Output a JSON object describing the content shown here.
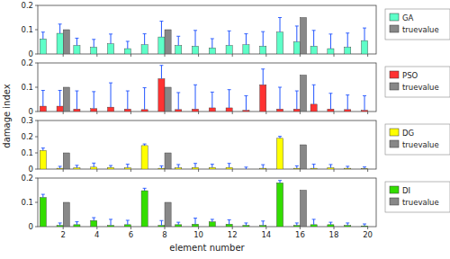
{
  "chart_data": [
    {
      "type": "bar",
      "ylabel": "damage index",
      "x": [
        1,
        2,
        3,
        4,
        5,
        6,
        7,
        8,
        9,
        10,
        11,
        12,
        13,
        14,
        15,
        16,
        17,
        18,
        19,
        20
      ],
      "xlim": [
        0.5,
        20.5
      ],
      "xticks": [
        2,
        4,
        6,
        8,
        10,
        12,
        14,
        16,
        18,
        20
      ],
      "ylim": [
        0,
        0.2
      ],
      "yticks": [
        0,
        0.1,
        0.2
      ],
      "tick_labels": "y",
      "legend": "right",
      "series": [
        {
          "name": "GA",
          "color": "#5EFFC8",
          "values": [
            0.062,
            0.085,
            0.035,
            0.028,
            0.042,
            0.022,
            0.038,
            0.07,
            0.035,
            0.032,
            0.025,
            0.035,
            0.038,
            0.032,
            0.09,
            0.05,
            0.032,
            0.022,
            0.028,
            0.055
          ],
          "errors": [
            0.028,
            0.038,
            0.03,
            0.032,
            0.04,
            0.03,
            0.045,
            0.065,
            0.038,
            0.065,
            0.038,
            0.06,
            0.045,
            0.06,
            0.06,
            0.065,
            0.065,
            0.06,
            0.058,
            0.052
          ]
        },
        {
          "name": "truevalue",
          "color": "#888888",
          "values": [
            0.0,
            0.1,
            0.0,
            0.0,
            0.0,
            0.0,
            0.0,
            0.1,
            0.0,
            0.0,
            0.0,
            0.0,
            0.0,
            0.0,
            0.0,
            0.15,
            0.0,
            0.0,
            0.0,
            0.0
          ]
        }
      ]
    },
    {
      "type": "bar",
      "x": [
        1,
        2,
        3,
        4,
        5,
        6,
        7,
        8,
        9,
        10,
        11,
        12,
        13,
        14,
        15,
        16,
        17,
        18,
        19,
        20
      ],
      "xlim": [
        0.5,
        20.5
      ],
      "xticks": [
        2,
        4,
        6,
        8,
        10,
        12,
        14,
        16,
        18,
        20
      ],
      "ylim": [
        0,
        0.2
      ],
      "yticks": [
        0,
        0.1,
        0.2
      ],
      "tick_labels": "y",
      "legend": "right",
      "series": [
        {
          "name": "PSO",
          "color": "#FF3333",
          "values": [
            0.022,
            0.022,
            0.01,
            0.012,
            0.018,
            0.01,
            0.008,
            0.135,
            0.008,
            0.01,
            0.015,
            0.015,
            0.005,
            0.11,
            0.01,
            0.01,
            0.03,
            0.01,
            0.008,
            0.005
          ],
          "errors": [
            0.065,
            0.065,
            0.075,
            0.07,
            0.1,
            0.075,
            0.09,
            0.055,
            0.07,
            0.1,
            0.065,
            0.075,
            0.06,
            0.065,
            0.09,
            0.075,
            0.08,
            0.065,
            0.06,
            0.06
          ]
        },
        {
          "name": "truevalue",
          "color": "#888888",
          "values": [
            0.0,
            0.1,
            0.0,
            0.0,
            0.0,
            0.0,
            0.0,
            0.1,
            0.0,
            0.0,
            0.0,
            0.0,
            0.0,
            0.0,
            0.0,
            0.15,
            0.0,
            0.0,
            0.0,
            0.0
          ]
        }
      ]
    },
    {
      "type": "bar",
      "x": [
        1,
        2,
        3,
        4,
        5,
        6,
        7,
        8,
        9,
        10,
        11,
        12,
        13,
        14,
        15,
        16,
        17,
        18,
        19,
        20
      ],
      "xlim": [
        0.5,
        20.5
      ],
      "xticks": [
        2,
        4,
        6,
        8,
        10,
        12,
        14,
        16,
        18,
        20
      ],
      "ylim": [
        0,
        0.3
      ],
      "yticks": [
        0,
        0.1,
        0.2,
        0.3
      ],
      "tick_labels": "y",
      "legend": "right",
      "series": [
        {
          "name": "DG",
          "color": "#FFFF00",
          "values": [
            0.115,
            0.005,
            0.008,
            0.012,
            0.01,
            0.008,
            0.145,
            0.005,
            0.008,
            0.01,
            0.01,
            0.01,
            0.0,
            0.005,
            0.19,
            0.005,
            0.005,
            0.008,
            0.005,
            0.003
          ],
          "errors": [
            0.015,
            0.012,
            0.015,
            0.025,
            0.012,
            0.022,
            0.01,
            0.015,
            0.02,
            0.025,
            0.02,
            0.025,
            0.012,
            0.022,
            0.012,
            0.015,
            0.025,
            0.02,
            0.012,
            0.01
          ]
        },
        {
          "name": "truevalue",
          "color": "#888888",
          "values": [
            0.0,
            0.1,
            0.0,
            0.0,
            0.0,
            0.0,
            0.0,
            0.1,
            0.0,
            0.0,
            0.0,
            0.0,
            0.0,
            0.0,
            0.0,
            0.15,
            0.0,
            0.0,
            0.0,
            0.0
          ]
        }
      ]
    },
    {
      "type": "bar",
      "xlabel": "element number",
      "x": [
        1,
        2,
        3,
        4,
        5,
        6,
        7,
        8,
        9,
        10,
        11,
        12,
        13,
        14,
        15,
        16,
        17,
        18,
        19,
        20
      ],
      "xlim": [
        0.5,
        20.5
      ],
      "xticks": [
        2,
        4,
        6,
        8,
        10,
        12,
        14,
        16,
        18,
        20
      ],
      "ylim": [
        0,
        0.2
      ],
      "yticks": [
        0,
        0.1,
        0.2
      ],
      "legend": "right",
      "series": [
        {
          "name": "DI",
          "color": "#33DD00",
          "values": [
            0.12,
            0.005,
            0.008,
            0.025,
            0.005,
            0.008,
            0.148,
            0.005,
            0.008,
            0.01,
            0.02,
            0.01,
            0.005,
            0.005,
            0.18,
            0.005,
            0.008,
            0.008,
            0.005,
            0.003
          ],
          "errors": [
            0.013,
            0.01,
            0.012,
            0.012,
            0.025,
            0.018,
            0.01,
            0.02,
            0.01,
            0.025,
            0.01,
            0.018,
            0.01,
            0.018,
            0.01,
            0.01,
            0.022,
            0.01,
            0.01,
            0.008
          ]
        },
        {
          "name": "truevalue",
          "color": "#888888",
          "values": [
            0.0,
            0.1,
            0.0,
            0.0,
            0.0,
            0.0,
            0.0,
            0.1,
            0.0,
            0.0,
            0.0,
            0.0,
            0.0,
            0.0,
            0.0,
            0.15,
            0.0,
            0.0,
            0.0,
            0.0
          ]
        }
      ]
    }
  ]
}
